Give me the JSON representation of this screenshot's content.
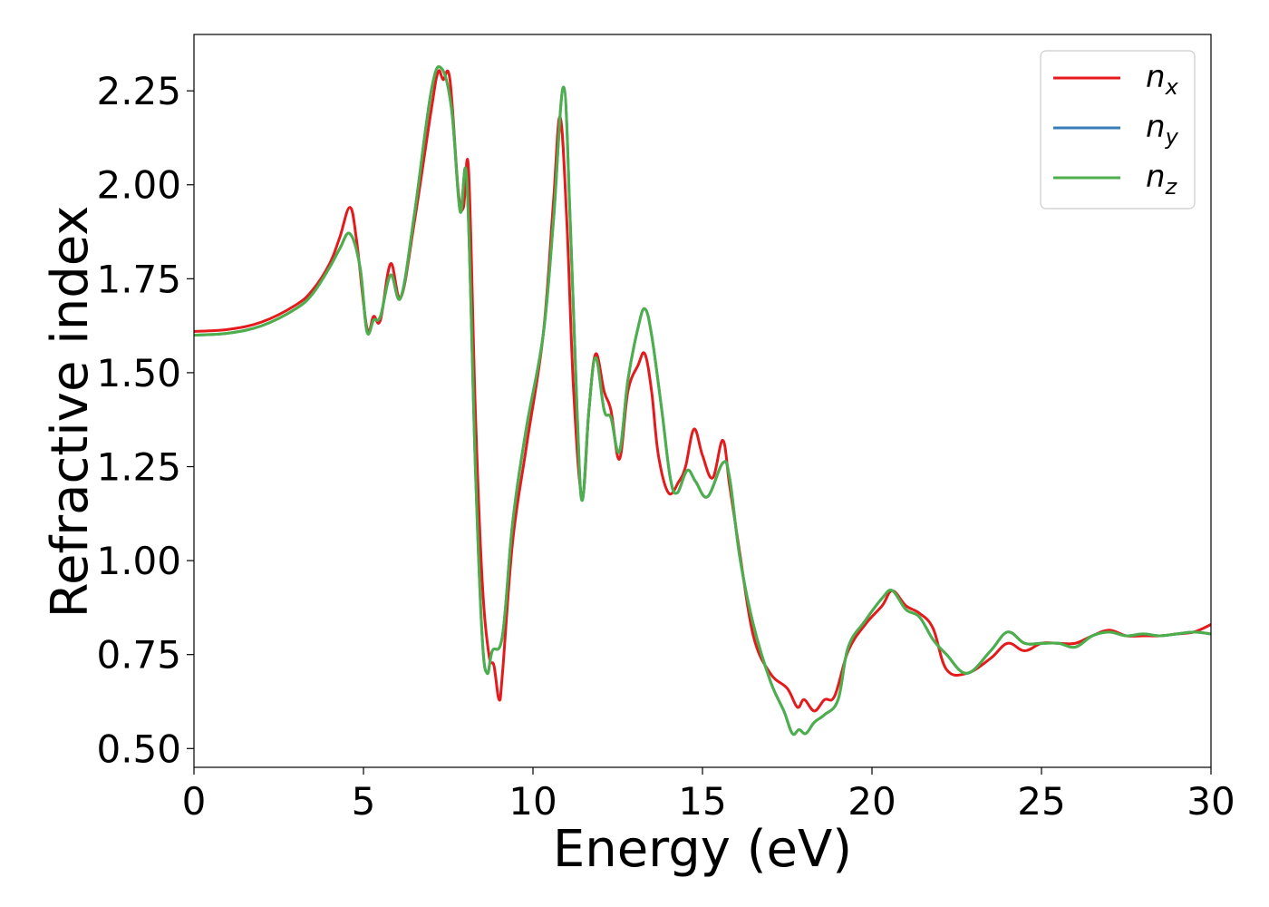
{
  "chart_data": {
    "type": "line",
    "title": "",
    "xlabel": "Energy (eV)",
    "ylabel": "Refractive index",
    "xlim": [
      0,
      30
    ],
    "ylim": [
      0.45,
      2.4
    ],
    "xticks": [
      0,
      5,
      10,
      15,
      20,
      25,
      30
    ],
    "xtick_labels": [
      "0",
      "5",
      "10",
      "15",
      "20",
      "25",
      "30"
    ],
    "yticks": [
      0.5,
      0.75,
      1.0,
      1.25,
      1.5,
      1.75,
      2.0,
      2.25
    ],
    "ytick_labels": [
      "0.50",
      "0.75",
      "1.00",
      "1.25",
      "1.50",
      "1.75",
      "2.00",
      "2.25"
    ],
    "grid": false,
    "legend_position": "top-right",
    "series": [
      {
        "name": "n_x",
        "label_base": "n",
        "label_sub": "x",
        "color": "#e41a1c",
        "points": [
          [
            0,
            1.61
          ],
          [
            1,
            1.615
          ],
          [
            2,
            1.635
          ],
          [
            3,
            1.68
          ],
          [
            3.5,
            1.72
          ],
          [
            4,
            1.79
          ],
          [
            4.3,
            1.86
          ],
          [
            4.6,
            1.94
          ],
          [
            4.8,
            1.85
          ],
          [
            5.1,
            1.62
          ],
          [
            5.3,
            1.65
          ],
          [
            5.5,
            1.64
          ],
          [
            5.8,
            1.79
          ],
          [
            6.1,
            1.7
          ],
          [
            6.5,
            1.9
          ],
          [
            7.0,
            2.2
          ],
          [
            7.2,
            2.3
          ],
          [
            7.35,
            2.28
          ],
          [
            7.55,
            2.28
          ],
          [
            7.8,
            1.98
          ],
          [
            7.95,
            1.94
          ],
          [
            8.1,
            2.04
          ],
          [
            8.3,
            1.4
          ],
          [
            8.5,
            0.95
          ],
          [
            8.7,
            0.75
          ],
          [
            8.85,
            0.72
          ],
          [
            9.0,
            0.63
          ],
          [
            9.1,
            0.7
          ],
          [
            9.4,
            1.05
          ],
          [
            9.8,
            1.3
          ],
          [
            10.3,
            1.6
          ],
          [
            10.6,
            1.95
          ],
          [
            10.8,
            2.18
          ],
          [
            11.0,
            1.9
          ],
          [
            11.2,
            1.45
          ],
          [
            11.45,
            1.17
          ],
          [
            11.65,
            1.4
          ],
          [
            11.85,
            1.55
          ],
          [
            12.1,
            1.45
          ],
          [
            12.3,
            1.4
          ],
          [
            12.55,
            1.27
          ],
          [
            12.8,
            1.45
          ],
          [
            13.1,
            1.52
          ],
          [
            13.3,
            1.55
          ],
          [
            13.5,
            1.45
          ],
          [
            13.7,
            1.28
          ],
          [
            14.0,
            1.18
          ],
          [
            14.3,
            1.21
          ],
          [
            14.5,
            1.25
          ],
          [
            14.75,
            1.35
          ],
          [
            15.0,
            1.28
          ],
          [
            15.3,
            1.22
          ],
          [
            15.6,
            1.32
          ],
          [
            15.8,
            1.2
          ],
          [
            16.1,
            1.02
          ],
          [
            16.5,
            0.8
          ],
          [
            17.0,
            0.7
          ],
          [
            17.5,
            0.66
          ],
          [
            17.8,
            0.61
          ],
          [
            18.0,
            0.63
          ],
          [
            18.3,
            0.6
          ],
          [
            18.6,
            0.63
          ],
          [
            18.9,
            0.64
          ],
          [
            19.3,
            0.76
          ],
          [
            19.8,
            0.83
          ],
          [
            20.3,
            0.88
          ],
          [
            20.6,
            0.92
          ],
          [
            21.0,
            0.88
          ],
          [
            21.4,
            0.86
          ],
          [
            21.8,
            0.82
          ],
          [
            22.2,
            0.71
          ],
          [
            22.8,
            0.7
          ],
          [
            23.5,
            0.74
          ],
          [
            24.0,
            0.78
          ],
          [
            24.5,
            0.76
          ],
          [
            25.0,
            0.78
          ],
          [
            25.5,
            0.78
          ],
          [
            26.0,
            0.78
          ],
          [
            26.5,
            0.8
          ],
          [
            27.0,
            0.815
          ],
          [
            27.5,
            0.8
          ],
          [
            28.0,
            0.8
          ],
          [
            28.5,
            0.8
          ],
          [
            29.0,
            0.805
          ],
          [
            29.5,
            0.81
          ],
          [
            30.0,
            0.83
          ]
        ]
      },
      {
        "name": "n_y",
        "label_base": "n",
        "label_sub": "y",
        "color": "#377eb8",
        "points": [
          [
            0,
            1.6
          ],
          [
            1,
            1.605
          ],
          [
            2,
            1.625
          ],
          [
            3,
            1.67
          ],
          [
            3.5,
            1.71
          ],
          [
            4,
            1.78
          ],
          [
            4.3,
            1.83
          ],
          [
            4.6,
            1.87
          ],
          [
            4.9,
            1.78
          ],
          [
            5.1,
            1.61
          ],
          [
            5.3,
            1.64
          ],
          [
            5.5,
            1.65
          ],
          [
            5.8,
            1.76
          ],
          [
            6.1,
            1.7
          ],
          [
            6.5,
            1.92
          ],
          [
            7.0,
            2.25
          ],
          [
            7.3,
            2.31
          ],
          [
            7.6,
            2.2
          ],
          [
            7.85,
            1.93
          ],
          [
            8.05,
            2.01
          ],
          [
            8.3,
            1.25
          ],
          [
            8.5,
            0.8
          ],
          [
            8.65,
            0.7
          ],
          [
            8.8,
            0.76
          ],
          [
            9.1,
            0.8
          ],
          [
            9.4,
            1.1
          ],
          [
            9.8,
            1.35
          ],
          [
            10.3,
            1.6
          ],
          [
            10.6,
            1.9
          ],
          [
            10.9,
            2.26
          ],
          [
            11.1,
            1.9
          ],
          [
            11.3,
            1.4
          ],
          [
            11.45,
            1.16
          ],
          [
            11.65,
            1.4
          ],
          [
            11.85,
            1.54
          ],
          [
            12.1,
            1.4
          ],
          [
            12.3,
            1.38
          ],
          [
            12.55,
            1.29
          ],
          [
            12.8,
            1.48
          ],
          [
            13.1,
            1.62
          ],
          [
            13.3,
            1.67
          ],
          [
            13.5,
            1.6
          ],
          [
            13.8,
            1.4
          ],
          [
            14.05,
            1.22
          ],
          [
            14.25,
            1.18
          ],
          [
            14.55,
            1.24
          ],
          [
            14.8,
            1.21
          ],
          [
            15.15,
            1.17
          ],
          [
            15.6,
            1.26
          ],
          [
            15.8,
            1.22
          ],
          [
            16.1,
            1.01
          ],
          [
            16.5,
            0.83
          ],
          [
            17.0,
            0.68
          ],
          [
            17.4,
            0.6
          ],
          [
            17.65,
            0.54
          ],
          [
            17.85,
            0.55
          ],
          [
            18.05,
            0.54
          ],
          [
            18.3,
            0.57
          ],
          [
            18.6,
            0.59
          ],
          [
            19.0,
            0.63
          ],
          [
            19.3,
            0.77
          ],
          [
            19.8,
            0.84
          ],
          [
            20.3,
            0.9
          ],
          [
            20.6,
            0.92
          ],
          [
            21.0,
            0.87
          ],
          [
            21.4,
            0.85
          ],
          [
            21.8,
            0.79
          ],
          [
            22.2,
            0.75
          ],
          [
            22.8,
            0.7
          ],
          [
            23.5,
            0.76
          ],
          [
            24.0,
            0.81
          ],
          [
            24.5,
            0.78
          ],
          [
            25.0,
            0.78
          ],
          [
            25.5,
            0.78
          ],
          [
            26.0,
            0.77
          ],
          [
            26.5,
            0.8
          ],
          [
            27.0,
            0.81
          ],
          [
            27.5,
            0.8
          ],
          [
            28.0,
            0.805
          ],
          [
            28.5,
            0.8
          ],
          [
            29.0,
            0.805
          ],
          [
            29.5,
            0.81
          ],
          [
            30.0,
            0.805
          ]
        ]
      },
      {
        "name": "n_z",
        "label_base": "n",
        "label_sub": "z",
        "color": "#4daf4a",
        "points": [
          [
            0,
            1.6
          ],
          [
            1,
            1.605
          ],
          [
            2,
            1.625
          ],
          [
            3,
            1.67
          ],
          [
            3.5,
            1.71
          ],
          [
            4,
            1.78
          ],
          [
            4.3,
            1.83
          ],
          [
            4.6,
            1.87
          ],
          [
            4.9,
            1.78
          ],
          [
            5.1,
            1.61
          ],
          [
            5.3,
            1.64
          ],
          [
            5.5,
            1.65
          ],
          [
            5.8,
            1.76
          ],
          [
            6.1,
            1.7
          ],
          [
            6.5,
            1.92
          ],
          [
            7.0,
            2.25
          ],
          [
            7.3,
            2.31
          ],
          [
            7.6,
            2.2
          ],
          [
            7.85,
            1.93
          ],
          [
            8.05,
            2.01
          ],
          [
            8.3,
            1.25
          ],
          [
            8.5,
            0.8
          ],
          [
            8.65,
            0.7
          ],
          [
            8.8,
            0.76
          ],
          [
            9.1,
            0.8
          ],
          [
            9.4,
            1.1
          ],
          [
            9.8,
            1.35
          ],
          [
            10.3,
            1.6
          ],
          [
            10.6,
            1.9
          ],
          [
            10.9,
            2.26
          ],
          [
            11.1,
            1.9
          ],
          [
            11.3,
            1.4
          ],
          [
            11.45,
            1.16
          ],
          [
            11.65,
            1.4
          ],
          [
            11.85,
            1.54
          ],
          [
            12.1,
            1.4
          ],
          [
            12.3,
            1.38
          ],
          [
            12.55,
            1.29
          ],
          [
            12.8,
            1.48
          ],
          [
            13.1,
            1.62
          ],
          [
            13.3,
            1.67
          ],
          [
            13.5,
            1.6
          ],
          [
            13.8,
            1.4
          ],
          [
            14.05,
            1.22
          ],
          [
            14.25,
            1.18
          ],
          [
            14.55,
            1.24
          ],
          [
            14.8,
            1.21
          ],
          [
            15.15,
            1.17
          ],
          [
            15.6,
            1.26
          ],
          [
            15.8,
            1.22
          ],
          [
            16.1,
            1.01
          ],
          [
            16.5,
            0.83
          ],
          [
            17.0,
            0.68
          ],
          [
            17.4,
            0.6
          ],
          [
            17.65,
            0.54
          ],
          [
            17.85,
            0.55
          ],
          [
            18.05,
            0.54
          ],
          [
            18.3,
            0.57
          ],
          [
            18.6,
            0.59
          ],
          [
            19.0,
            0.63
          ],
          [
            19.3,
            0.77
          ],
          [
            19.8,
            0.84
          ],
          [
            20.3,
            0.9
          ],
          [
            20.6,
            0.92
          ],
          [
            21.0,
            0.87
          ],
          [
            21.4,
            0.85
          ],
          [
            21.8,
            0.79
          ],
          [
            22.2,
            0.75
          ],
          [
            22.8,
            0.7
          ],
          [
            23.5,
            0.76
          ],
          [
            24.0,
            0.81
          ],
          [
            24.5,
            0.78
          ],
          [
            25.0,
            0.78
          ],
          [
            25.5,
            0.78
          ],
          [
            26.0,
            0.77
          ],
          [
            26.5,
            0.8
          ],
          [
            27.0,
            0.81
          ],
          [
            27.5,
            0.8
          ],
          [
            28.0,
            0.805
          ],
          [
            28.5,
            0.8
          ],
          [
            29.0,
            0.805
          ],
          [
            29.5,
            0.81
          ],
          [
            30.0,
            0.805
          ]
        ]
      }
    ]
  }
}
